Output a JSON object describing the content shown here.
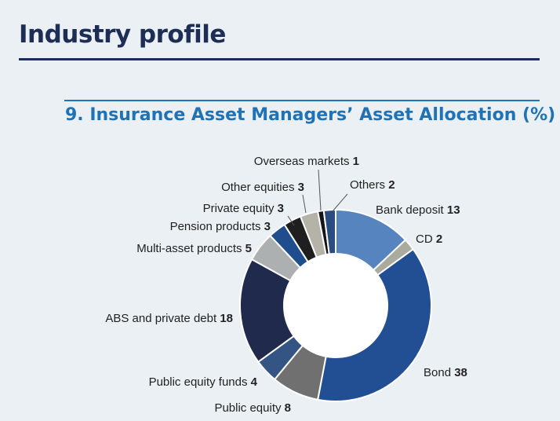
{
  "header": {
    "title": "Industry profile"
  },
  "chart_data": {
    "type": "pie",
    "variant": "donut",
    "title": "9. Insurance Asset Managers’ Asset Allocation (%)",
    "unit": "%",
    "start_angle": "top, clockwise from Bank deposit",
    "slices": [
      {
        "label": "Bank deposit",
        "value": 13,
        "color": "#5684be"
      },
      {
        "label": "CD",
        "value": 2,
        "color": "#a9ab9f"
      },
      {
        "label": "Bond",
        "value": 38,
        "color": "#224f94"
      },
      {
        "label": "Public equity",
        "value": 8,
        "color": "#707070"
      },
      {
        "label": "Public equity funds",
        "value": 4,
        "color": "#345584"
      },
      {
        "label": "ABS and private debt",
        "value": 18,
        "color": "#1f2a4c"
      },
      {
        "label": "Multi-asset products",
        "value": 5,
        "color": "#adb0b0"
      },
      {
        "label": "Pension products",
        "value": 3,
        "color": "#1f4d8e"
      },
      {
        "label": "Private equity",
        "value": 3,
        "color": "#1f1f1f"
      },
      {
        "label": "Other equities",
        "value": 3,
        "color": "#b5b2a8"
      },
      {
        "label": "Overseas markets",
        "value": 1,
        "color": "#151515"
      },
      {
        "label": "Others",
        "value": 2,
        "color": "#2b4c80"
      }
    ]
  }
}
